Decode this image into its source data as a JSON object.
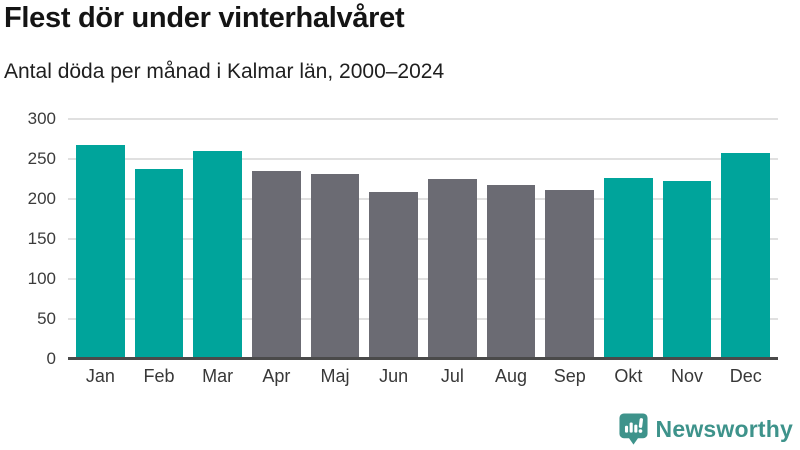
{
  "header": {
    "title": "Flest dör under vinterhalvåret",
    "subtitle": "Antal döda per månad i Kalmar län, 2000–2024"
  },
  "chart_data": {
    "type": "bar",
    "title": "Flest dör under vinterhalvåret",
    "subtitle": "Antal döda per månad i Kalmar län, 2000–2024",
    "categories": [
      "Jan",
      "Feb",
      "Mar",
      "Apr",
      "Maj",
      "Jun",
      "Jul",
      "Aug",
      "Sep",
      "Okt",
      "Nov",
      "Dec"
    ],
    "values": [
      268,
      237,
      260,
      235,
      231,
      209,
      225,
      217,
      211,
      226,
      222,
      257
    ],
    "bar_groups": [
      "winter",
      "winter",
      "winter",
      "summer",
      "summer",
      "summer",
      "summer",
      "summer",
      "summer",
      "winter",
      "winter",
      "winter"
    ],
    "group_colors": {
      "winter": "#00a49b",
      "summer": "#6b6b73"
    },
    "xlabel": "",
    "ylabel": "",
    "ylim": [
      0,
      300
    ],
    "yticks": [
      0,
      50,
      100,
      150,
      200,
      250,
      300
    ],
    "grid": true,
    "legend": false,
    "axis_line_color": "#4a4a4a",
    "gridline_color": "#e0e0e0"
  },
  "footer": {
    "brand": "Newsworthy",
    "brand_color": "#3e938b",
    "logo_icon": "speech-bubble-bar-chart-icon"
  }
}
